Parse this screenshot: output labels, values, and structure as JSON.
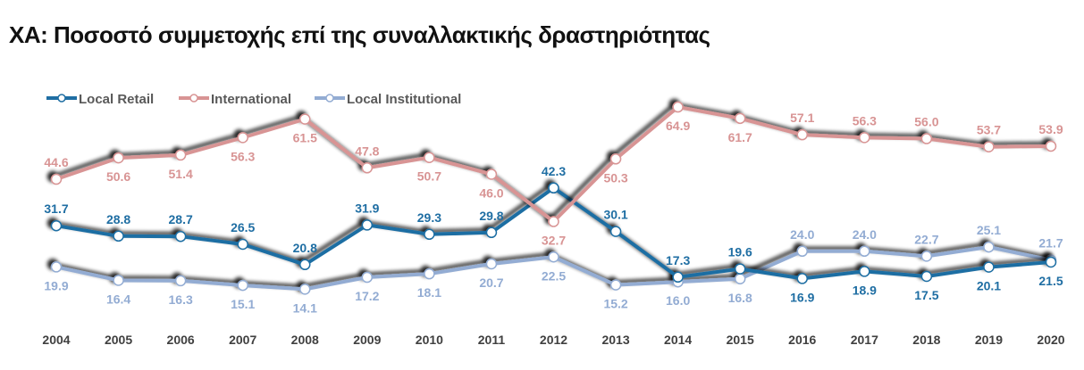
{
  "chart_data": {
    "type": "line",
    "title": "ΧΑ: Ποσοστό συμμετοχής επί της συναλλακτικής δραστηριότητας",
    "xlabel": "",
    "ylabel": "",
    "grid": false,
    "legend_position": "top-left",
    "x": [
      "2004",
      "2005",
      "2006",
      "2007",
      "2008",
      "2009",
      "2010",
      "2011",
      "2012",
      "2013",
      "2014",
      "2015",
      "2016",
      "2017",
      "2018",
      "2019",
      "2020"
    ],
    "series": [
      {
        "name": "Local Retail",
        "color": "#1f6ea3",
        "values": [
          31.7,
          28.8,
          28.7,
          26.5,
          20.8,
          31.9,
          29.3,
          29.8,
          42.3,
          30.1,
          17.3,
          19.6,
          16.9,
          18.9,
          17.5,
          20.1,
          21.5
        ],
        "label_position": [
          "above",
          "above",
          "above",
          "above",
          "above",
          "above",
          "above",
          "above",
          "above",
          "above",
          "above",
          "above",
          "below",
          "below",
          "below",
          "below",
          "below"
        ]
      },
      {
        "name": "International",
        "color": "#d89494",
        "values": [
          44.6,
          50.6,
          51.4,
          56.3,
          61.5,
          47.8,
          50.7,
          46.0,
          32.7,
          50.3,
          64.9,
          61.7,
          57.1,
          56.3,
          56.0,
          53.7,
          53.9
        ],
        "label_position": [
          "above",
          "below",
          "below",
          "below",
          "below",
          "above",
          "below",
          "below",
          "below",
          "below",
          "below",
          "below",
          "above",
          "above",
          "above",
          "above",
          "above"
        ]
      },
      {
        "name": "Local Institutional",
        "color": "#93acd3",
        "values": [
          19.9,
          16.4,
          16.3,
          15.1,
          14.1,
          17.2,
          18.1,
          20.7,
          22.5,
          15.2,
          16.0,
          16.8,
          24.0,
          24.0,
          22.7,
          25.1,
          21.7
        ],
        "label_position": [
          "below",
          "below",
          "below",
          "below",
          "below",
          "below",
          "below",
          "below",
          "below",
          "below",
          "below",
          "below",
          "above",
          "above",
          "above",
          "above",
          "above"
        ]
      }
    ]
  }
}
